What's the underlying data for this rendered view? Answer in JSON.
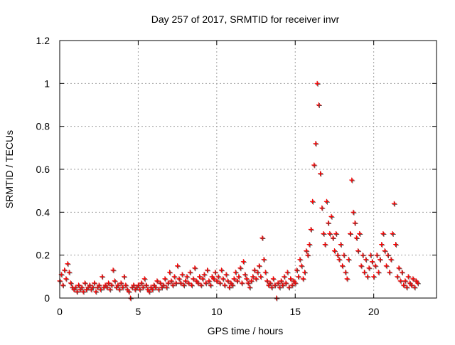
{
  "chart_data": {
    "type": "scatter",
    "title": "Day 257 of 2017, SRMTID for receiver invr",
    "xlabel": "GPS time / hours",
    "ylabel": "SRMTID / TECUs",
    "xlim": [
      0,
      24
    ],
    "ylim": [
      0,
      1.2
    ],
    "xticks": [
      0,
      5,
      10,
      15,
      20
    ],
    "xtick_labels": [
      "0",
      "5",
      "10",
      "15",
      "20"
    ],
    "yticks": [
      0,
      0.2,
      0.4,
      0.6,
      0.8,
      1,
      1.2
    ],
    "ytick_labels": [
      "0",
      "0.2",
      "0.4",
      "0.6",
      "0.8",
      "1",
      "1.2"
    ],
    "grid": true,
    "marker": "plus",
    "color": "#ff0000",
    "x_start": 0,
    "x_step": 0.1,
    "series": [
      {
        "name": "SRMTID",
        "values": [
          0.08,
          0.11,
          0.06,
          0.13,
          0.09,
          0.16,
          0.12,
          0.07,
          0.05,
          0.04,
          0.05,
          0.03,
          0.06,
          0.04,
          0.05,
          0.03,
          0.07,
          0.04,
          0.05,
          0.06,
          0.04,
          0.05,
          0.07,
          0.03,
          0.05,
          0.06,
          0.04,
          0.1,
          0.05,
          0.06,
          0.05,
          0.07,
          0.04,
          0.06,
          0.13,
          0.08,
          0.05,
          0.06,
          0.04,
          0.07,
          0.05,
          0.1,
          0.06,
          0.04,
          0.03,
          0.0,
          0.05,
          0.06,
          0.04,
          0.05,
          0.06,
          0.04,
          0.07,
          0.05,
          0.09,
          0.06,
          0.04,
          0.03,
          0.05,
          0.04,
          0.06,
          0.05,
          0.08,
          0.04,
          0.07,
          0.05,
          0.06,
          0.09,
          0.05,
          0.07,
          0.12,
          0.08,
          0.06,
          0.1,
          0.07,
          0.15,
          0.09,
          0.07,
          0.11,
          0.06,
          0.08,
          0.1,
          0.07,
          0.12,
          0.06,
          0.09,
          0.14,
          0.08,
          0.07,
          0.1,
          0.06,
          0.09,
          0.11,
          0.07,
          0.13,
          0.08,
          0.06,
          0.1,
          0.09,
          0.12,
          0.08,
          0.1,
          0.07,
          0.13,
          0.09,
          0.06,
          0.11,
          0.08,
          0.05,
          0.07,
          0.06,
          0.09,
          0.12,
          0.08,
          0.1,
          0.14,
          0.07,
          0.17,
          0.11,
          0.09,
          0.07,
          0.05,
          0.08,
          0.1,
          0.13,
          0.09,
          0.12,
          0.15,
          0.1,
          0.28,
          0.18,
          0.12,
          0.08,
          0.06,
          0.07,
          0.05,
          0.09,
          0.06,
          0.0,
          0.07,
          0.05,
          0.08,
          0.06,
          0.1,
          0.07,
          0.12,
          0.05,
          0.09,
          0.06,
          0.08,
          0.07,
          0.13,
          0.1,
          0.18,
          0.15,
          0.09,
          0.12,
          0.22,
          0.2,
          0.25,
          0.32,
          0.45,
          0.62,
          0.72,
          1.0,
          0.9,
          0.58,
          0.42,
          0.3,
          0.25,
          0.45,
          0.35,
          0.3,
          0.38,
          0.28,
          0.22,
          0.3,
          0.2,
          0.18,
          0.25,
          0.15,
          0.2,
          0.12,
          0.09,
          0.18,
          0.3,
          0.55,
          0.4,
          0.35,
          0.28,
          0.22,
          0.3,
          0.15,
          0.2,
          0.12,
          0.18,
          0.1,
          0.14,
          0.2,
          0.17,
          0.1,
          0.15,
          0.2,
          0.12,
          0.18,
          0.25,
          0.3,
          0.22,
          0.15,
          0.2,
          0.12,
          0.18,
          0.3,
          0.44,
          0.25,
          0.1,
          0.14,
          0.08,
          0.12,
          0.06,
          0.08,
          0.05,
          0.1,
          0.07,
          0.06,
          0.09,
          0.05,
          0.08,
          0.07
        ]
      }
    ]
  }
}
